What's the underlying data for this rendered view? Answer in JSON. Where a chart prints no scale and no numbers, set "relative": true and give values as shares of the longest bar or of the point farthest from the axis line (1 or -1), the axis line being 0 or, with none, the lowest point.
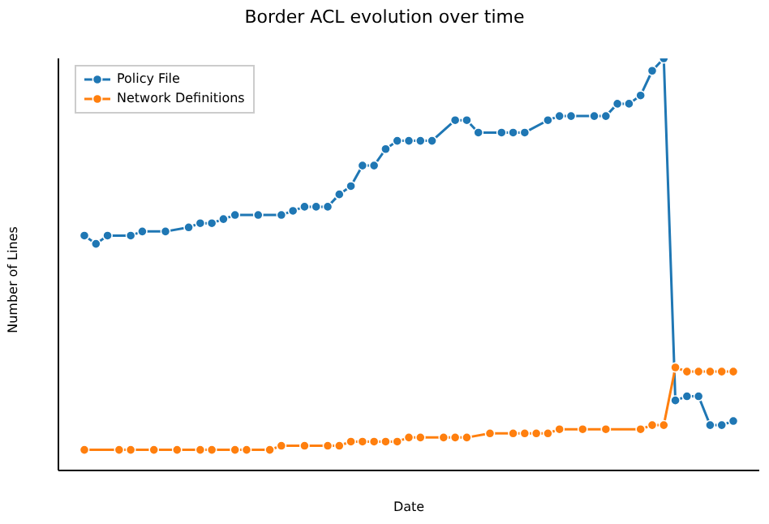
{
  "chart_data": {
    "type": "line",
    "title": "Border ACL evolution over time",
    "xlabel": "Date",
    "ylabel": "Number of Lines",
    "relative": true,
    "marker": "circle",
    "line_style": "solid",
    "legend": "top left",
    "categories": [
      null,
      null,
      null,
      null,
      null,
      null,
      null,
      null,
      null,
      null,
      null,
      null,
      null,
      null,
      null,
      null,
      null,
      null,
      null,
      null,
      null,
      null,
      null,
      null,
      null,
      null,
      null,
      null,
      null,
      null,
      null,
      null,
      null,
      null,
      null,
      null,
      null,
      null,
      null,
      null,
      null,
      null,
      null,
      null,
      null,
      null,
      null,
      null,
      null,
      null,
      null,
      null,
      null,
      null,
      null,
      null,
      null
    ],
    "series": [
      {
        "name": "Policy File",
        "color": "#1f77b4",
        "values": [
          0.57,
          0.55,
          0.57,
          null,
          0.57,
          0.58,
          null,
          0.58,
          null,
          0.59,
          0.6,
          0.6,
          0.61,
          0.62,
          null,
          0.62,
          null,
          0.62,
          0.63,
          0.64,
          0.64,
          0.64,
          0.67,
          0.69,
          0.74,
          0.74,
          0.78,
          0.8,
          0.8,
          0.8,
          0.8,
          null,
          0.85,
          0.85,
          0.82,
          null,
          0.82,
          0.82,
          0.82,
          null,
          0.85,
          0.86,
          0.86,
          null,
          0.86,
          0.86,
          0.89,
          0.89,
          0.91,
          0.97,
          1,
          0.17,
          0.18,
          0.18,
          0.11,
          0.11,
          0.12
        ]
      },
      {
        "name": "Network Definitions",
        "color": "#ff7f0e",
        "values": [
          0.05,
          null,
          null,
          0.05,
          0.05,
          null,
          0.05,
          null,
          0.05,
          null,
          0.05,
          0.05,
          null,
          0.05,
          0.05,
          null,
          0.05,
          0.06,
          null,
          0.06,
          null,
          0.06,
          0.06,
          0.07,
          0.07,
          0.07,
          0.07,
          0.07,
          0.08,
          0.08,
          null,
          0.08,
          0.08,
          0.08,
          null,
          0.09,
          null,
          0.09,
          0.09,
          0.09,
          0.09,
          0.1,
          null,
          0.1,
          null,
          0.1,
          null,
          null,
          0.1,
          0.11,
          0.11,
          0.25,
          0.24,
          0.24,
          0.24,
          0.24,
          0.24
        ]
      }
    ]
  }
}
